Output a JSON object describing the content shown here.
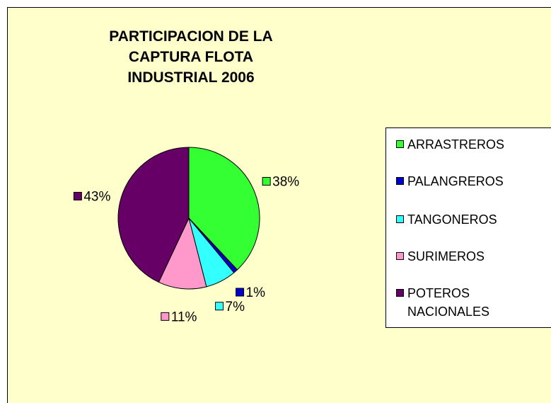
{
  "chart_data": {
    "type": "pie",
    "title": "PARTICIPACION DE LA CAPTURA FLOTA INDUSTRIAL 2006",
    "categories": [
      "ARRASTREROS",
      "PALANGREROS",
      "TANGONEROS",
      "SURIMEROS",
      "POTEROS NACIONALES"
    ],
    "values": [
      38,
      1,
      7,
      11,
      43
    ],
    "value_labels": [
      "38%",
      "1%",
      "7%",
      "11%",
      "43%"
    ],
    "colors": [
      "#33ff33",
      "#0000cc",
      "#33ffff",
      "#ff99cc",
      "#660066"
    ],
    "legend": "right"
  }
}
